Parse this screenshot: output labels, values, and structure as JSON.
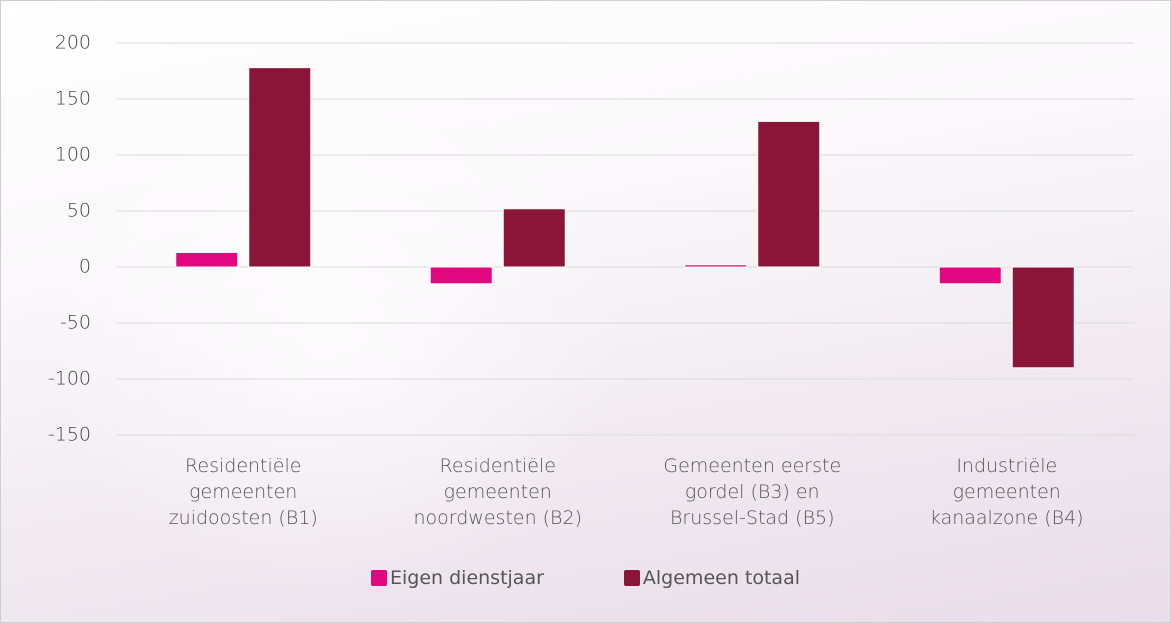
{
  "chart_data": {
    "type": "bar",
    "categories": [
      "Residentiële gemeenten zuidoosten (B1)",
      "Residentiële gemeenten noordwesten (B2)",
      "Gemeenten eerste gordel (B3) en Brussel-Stad (B5)",
      "Industriële gemeenten kanaalzone (B4)"
    ],
    "series": [
      {
        "name": "Eigen dienstjaar",
        "color": "#e2067f",
        "values": [
          13,
          -15,
          2,
          -15
        ]
      },
      {
        "name": "Algemeen totaal",
        "color": "#8b1538",
        "values": [
          178,
          52,
          130,
          -90
        ]
      }
    ],
    "ylim": [
      -150,
      200
    ],
    "yticks": [
      -150,
      -100,
      -50,
      0,
      50,
      100,
      150,
      200
    ],
    "grid": true
  }
}
